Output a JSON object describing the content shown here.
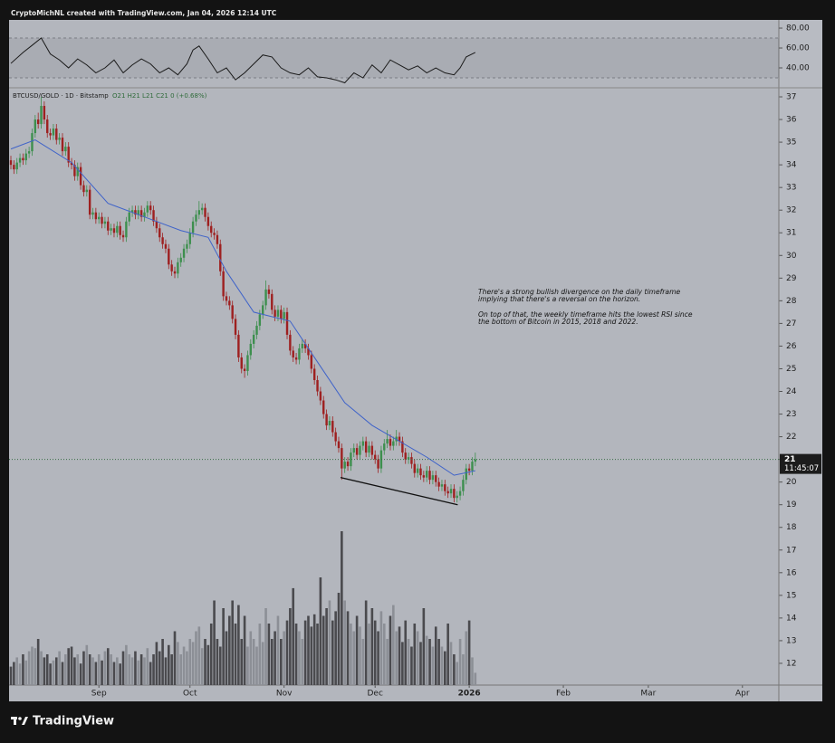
{
  "header": "CryptoMichNL created with TradingView.com, Jan 04, 2026 12:14 UTC",
  "brand": "TradingView",
  "chart_data": [
    {
      "type": "candlestick",
      "symbol": "BTCUSD/GOLD · 1D · Bitstamp",
      "ohlc_legend": "O21 H21 L21 C21 0 (+0.68%)",
      "annotation": [
        [
          "There's a strong bullish divergence on the daily timeframe",
          "implying that there's a reversal on the horizon."
        ],
        [
          "On top of that, the weekly timeframe hits the lowest RSI since",
          "the bottom of Bitcoin in 2015, 2018 and 2022."
        ]
      ],
      "up_color": "#3d8f4e",
      "down_color": "#9e2020",
      "xlim": [
        -0.6,
        253
      ],
      "xticks": [
        {
          "value": 29,
          "label": "Sep"
        },
        {
          "value": 59,
          "label": "Oct"
        },
        {
          "value": 90,
          "label": "Nov"
        },
        {
          "value": 120,
          "label": "Dec"
        },
        {
          "value": 151,
          "label": "2026"
        },
        {
          "value": 182,
          "label": "Feb"
        },
        {
          "value": 210,
          "label": "Mar"
        },
        {
          "value": 241,
          "label": "Apr"
        }
      ],
      "ylim": [
        11.04,
        37.4
      ],
      "yticks": [
        12,
        13,
        14,
        15,
        16,
        17,
        18,
        19,
        20,
        21,
        22,
        23,
        24,
        25,
        26,
        27,
        28,
        29,
        30,
        31,
        32,
        33,
        34,
        35,
        36,
        37
      ],
      "last_price": 21,
      "countdown": "11:45:07",
      "ohlc": [
        [
          34.2,
          34.4,
          33.8,
          34.0
        ],
        [
          34.0,
          34.2,
          33.6,
          33.8
        ],
        [
          33.8,
          34.3,
          33.6,
          34.1
        ],
        [
          34.1,
          34.5,
          33.9,
          34.3
        ],
        [
          34.3,
          34.5,
          34.0,
          34.2
        ],
        [
          34.2,
          34.7,
          34.0,
          34.5
        ],
        [
          34.5,
          34.8,
          34.3,
          34.6
        ],
        [
          34.6,
          35.6,
          34.4,
          35.4
        ],
        [
          35.4,
          36.2,
          35.2,
          36.0
        ],
        [
          36.0,
          36.3,
          35.6,
          35.8
        ],
        [
          35.8,
          37.0,
          35.6,
          36.6
        ],
        [
          36.6,
          36.8,
          35.8,
          36.0
        ],
        [
          36.0,
          36.2,
          35.2,
          35.4
        ],
        [
          35.4,
          35.6,
          35.1,
          35.3
        ],
        [
          35.3,
          35.8,
          35.1,
          35.6
        ],
        [
          35.6,
          35.8,
          34.9,
          35.1
        ],
        [
          35.1,
          35.4,
          34.9,
          35.2
        ],
        [
          35.2,
          35.4,
          34.4,
          34.6
        ],
        [
          34.6,
          35.0,
          34.4,
          34.8
        ],
        [
          34.8,
          35.0,
          33.9,
          34.1
        ],
        [
          34.1,
          34.3,
          33.8,
          34.0
        ],
        [
          34.0,
          34.2,
          33.3,
          33.5
        ],
        [
          33.5,
          34.1,
          33.3,
          33.9
        ],
        [
          33.9,
          34.1,
          32.9,
          33.1
        ],
        [
          33.1,
          33.3,
          32.6,
          32.8
        ],
        [
          32.8,
          33.1,
          32.6,
          32.9
        ],
        [
          32.9,
          33.1,
          31.6,
          31.8
        ],
        [
          31.8,
          32.1,
          31.6,
          31.9
        ],
        [
          31.9,
          32.1,
          31.4,
          31.6
        ],
        [
          31.6,
          31.9,
          31.4,
          31.7
        ],
        [
          31.7,
          31.9,
          31.2,
          31.4
        ],
        [
          31.4,
          31.7,
          31.2,
          31.5
        ],
        [
          31.5,
          31.7,
          30.9,
          31.1
        ],
        [
          31.1,
          31.4,
          30.9,
          31.2
        ],
        [
          31.2,
          31.4,
          30.8,
          31.0
        ],
        [
          31.0,
          31.5,
          30.8,
          31.3
        ],
        [
          31.3,
          31.5,
          30.7,
          30.9
        ],
        [
          30.9,
          31.1,
          30.6,
          30.8
        ],
        [
          30.8,
          31.7,
          30.6,
          31.5
        ],
        [
          31.5,
          32.1,
          31.3,
          31.9
        ],
        [
          31.9,
          32.2,
          31.7,
          32.0
        ],
        [
          32.0,
          32.2,
          31.6,
          31.8
        ],
        [
          31.8,
          32.2,
          31.6,
          32.0
        ],
        [
          32.0,
          32.2,
          31.5,
          31.7
        ],
        [
          31.7,
          32.1,
          31.5,
          31.9
        ],
        [
          31.9,
          32.4,
          31.7,
          32.2
        ],
        [
          32.2,
          32.4,
          31.8,
          32.0
        ],
        [
          32.0,
          32.2,
          31.3,
          31.5
        ],
        [
          31.5,
          31.7,
          31.0,
          31.2
        ],
        [
          31.2,
          31.4,
          30.6,
          30.8
        ],
        [
          30.8,
          31.0,
          30.3,
          30.5
        ],
        [
          30.5,
          30.7,
          30.1,
          30.3
        ],
        [
          30.3,
          30.5,
          29.4,
          29.6
        ],
        [
          29.6,
          29.8,
          29.1,
          29.3
        ],
        [
          29.3,
          29.5,
          29.0,
          29.2
        ],
        [
          29.2,
          29.9,
          29.0,
          29.7
        ],
        [
          29.7,
          30.1,
          29.5,
          29.9
        ],
        [
          29.9,
          30.5,
          29.7,
          30.3
        ],
        [
          30.3,
          30.7,
          30.1,
          30.5
        ],
        [
          30.5,
          31.2,
          30.3,
          31.0
        ],
        [
          31.0,
          31.7,
          30.8,
          31.5
        ],
        [
          31.5,
          32.0,
          31.3,
          31.8
        ],
        [
          31.8,
          32.4,
          31.6,
          32.0
        ],
        [
          32.0,
          32.3,
          31.8,
          32.1
        ],
        [
          32.1,
          32.3,
          31.5,
          31.7
        ],
        [
          31.7,
          31.9,
          31.1,
          31.3
        ],
        [
          31.3,
          31.5,
          30.8,
          31.0
        ],
        [
          31.0,
          31.2,
          30.7,
          30.9
        ],
        [
          30.9,
          31.1,
          30.3,
          30.5
        ],
        [
          30.5,
          30.7,
          29.1,
          29.3
        ],
        [
          29.3,
          29.5,
          28.0,
          28.2
        ],
        [
          28.2,
          28.4,
          27.8,
          28.0
        ],
        [
          28.0,
          28.2,
          27.6,
          27.8
        ],
        [
          27.8,
          28.0,
          27.0,
          27.2
        ],
        [
          27.2,
          27.4,
          26.3,
          26.5
        ],
        [
          26.5,
          26.7,
          25.3,
          25.5
        ],
        [
          25.5,
          25.7,
          24.8,
          25.0
        ],
        [
          25.0,
          25.2,
          24.6,
          24.9
        ],
        [
          24.9,
          25.8,
          24.7,
          25.6
        ],
        [
          25.6,
          26.3,
          25.4,
          26.1
        ],
        [
          26.1,
          26.7,
          25.9,
          26.5
        ],
        [
          26.5,
          27.1,
          26.3,
          26.9
        ],
        [
          26.9,
          27.6,
          26.7,
          27.4
        ],
        [
          27.4,
          28.0,
          27.2,
          27.8
        ],
        [
          27.8,
          28.9,
          27.6,
          28.5
        ],
        [
          28.5,
          28.7,
          28.1,
          28.3
        ],
        [
          28.3,
          28.5,
          27.4,
          27.6
        ],
        [
          27.6,
          27.8,
          27.1,
          27.3
        ],
        [
          27.3,
          27.8,
          27.1,
          27.6
        ],
        [
          27.6,
          27.8,
          27.0,
          27.2
        ],
        [
          27.2,
          27.7,
          27.0,
          27.5
        ],
        [
          27.5,
          27.7,
          26.3,
          26.5
        ],
        [
          26.5,
          26.7,
          25.6,
          25.8
        ],
        [
          25.8,
          26.0,
          25.3,
          25.5
        ],
        [
          25.5,
          25.7,
          25.2,
          25.4
        ],
        [
          25.4,
          26.1,
          25.2,
          25.9
        ],
        [
          25.9,
          26.3,
          25.7,
          26.1
        ],
        [
          26.1,
          26.3,
          25.7,
          25.9
        ],
        [
          25.9,
          26.1,
          25.4,
          25.6
        ],
        [
          25.6,
          25.8,
          24.8,
          25.0
        ],
        [
          25.0,
          25.2,
          24.3,
          24.5
        ],
        [
          24.5,
          24.7,
          23.8,
          24.0
        ],
        [
          24.0,
          24.2,
          23.4,
          23.6
        ],
        [
          23.6,
          23.8,
          22.8,
          23.0
        ],
        [
          23.0,
          23.2,
          22.3,
          22.5
        ],
        [
          22.5,
          22.9,
          22.3,
          22.7
        ],
        [
          22.7,
          22.9,
          22.0,
          22.2
        ],
        [
          22.2,
          22.4,
          21.6,
          21.8
        ],
        [
          21.8,
          22.0,
          21.3,
          21.5
        ],
        [
          21.5,
          21.7,
          20.1,
          20.6
        ],
        [
          20.6,
          21.1,
          20.4,
          20.9
        ],
        [
          20.9,
          21.1,
          20.5,
          20.7
        ],
        [
          20.7,
          21.5,
          20.5,
          21.3
        ],
        [
          21.3,
          21.7,
          21.1,
          21.5
        ],
        [
          21.5,
          21.7,
          21.0,
          21.2
        ],
        [
          21.2,
          21.8,
          21.0,
          21.6
        ],
        [
          21.6,
          22.0,
          21.4,
          21.8
        ],
        [
          21.8,
          22.0,
          21.1,
          21.3
        ],
        [
          21.3,
          21.8,
          21.1,
          21.6
        ],
        [
          21.6,
          21.8,
          21.0,
          21.2
        ],
        [
          21.2,
          21.4,
          20.8,
          21.0
        ],
        [
          21.0,
          21.2,
          20.4,
          20.6
        ],
        [
          20.6,
          21.6,
          20.4,
          21.4
        ],
        [
          21.4,
          21.9,
          21.2,
          21.7
        ],
        [
          21.7,
          22.3,
          21.5,
          21.9
        ],
        [
          21.9,
          22.1,
          21.4,
          21.6
        ],
        [
          21.6,
          22.0,
          21.4,
          21.8
        ],
        [
          21.8,
          22.3,
          21.6,
          22.0
        ],
        [
          22.0,
          22.2,
          21.6,
          21.8
        ],
        [
          21.8,
          22.0,
          21.1,
          21.3
        ],
        [
          21.3,
          21.5,
          20.8,
          21.0
        ],
        [
          21.0,
          21.3,
          20.8,
          21.1
        ],
        [
          21.1,
          21.3,
          20.6,
          20.8
        ],
        [
          20.8,
          21.0,
          20.2,
          20.4
        ],
        [
          20.4,
          20.8,
          20.2,
          20.6
        ],
        [
          20.6,
          20.8,
          20.1,
          20.3
        ],
        [
          20.3,
          20.5,
          20.0,
          20.2
        ],
        [
          20.2,
          20.7,
          20.0,
          20.5
        ],
        [
          20.5,
          20.7,
          19.9,
          20.1
        ],
        [
          20.1,
          20.5,
          19.9,
          20.3
        ],
        [
          20.3,
          20.5,
          19.8,
          20.0
        ],
        [
          20.0,
          20.2,
          19.6,
          19.8
        ],
        [
          19.8,
          20.1,
          19.6,
          19.9
        ],
        [
          19.9,
          20.1,
          19.4,
          19.6
        ],
        [
          19.6,
          19.8,
          19.3,
          19.5
        ],
        [
          19.5,
          19.9,
          19.3,
          19.7
        ],
        [
          19.7,
          19.9,
          19.1,
          19.3
        ],
        [
          19.3,
          19.6,
          19.1,
          19.4
        ],
        [
          19.4,
          19.8,
          19.2,
          19.6
        ],
        [
          19.6,
          20.3,
          19.4,
          20.1
        ],
        [
          20.1,
          20.8,
          19.9,
          20.6
        ],
        [
          20.6,
          20.8,
          20.3,
          20.5
        ],
        [
          20.5,
          21.1,
          20.3,
          20.9
        ],
        [
          20.9,
          21.3,
          20.7,
          21.0
        ]
      ],
      "volume_lim": [
        0,
        100
      ],
      "volume": [
        12,
        15,
        18,
        14,
        20,
        16,
        22,
        25,
        24,
        30,
        22,
        18,
        20,
        14,
        16,
        18,
        22,
        15,
        20,
        24,
        25,
        18,
        20,
        14,
        22,
        26,
        20,
        18,
        15,
        20,
        16,
        22,
        24,
        20,
        15,
        18,
        14,
        22,
        26,
        20,
        18,
        22,
        16,
        20,
        18,
        24,
        15,
        20,
        28,
        22,
        30,
        18,
        26,
        20,
        35,
        28,
        20,
        25,
        22,
        30,
        28,
        35,
        38,
        24,
        30,
        26,
        40,
        55,
        30,
        25,
        50,
        35,
        45,
        55,
        40,
        52,
        30,
        45,
        25,
        35,
        30,
        25,
        40,
        28,
        50,
        40,
        30,
        35,
        45,
        30,
        35,
        42,
        50,
        63,
        40,
        35,
        30,
        42,
        45,
        38,
        46,
        40,
        70,
        45,
        50,
        55,
        42,
        48,
        60,
        100,
        55,
        48,
        40,
        35,
        45,
        38,
        30,
        55,
        40,
        50,
        42,
        35,
        48,
        40,
        30,
        45,
        52,
        35,
        38,
        28,
        42,
        30,
        25,
        40,
        35,
        28,
        50,
        32,
        30,
        25,
        38,
        30,
        25,
        22,
        40,
        28,
        20,
        15,
        30,
        20,
        35,
        42,
        18,
        8
      ],
      "ma": {
        "color": "#3f63c9",
        "x": [
          0,
          8,
          20,
          32,
          44,
          56,
          65,
          71,
          80,
          92,
          101,
          110,
          119,
          128,
          137,
          146,
          153
        ],
        "values": [
          34.7,
          35.1,
          34.1,
          32.3,
          31.7,
          31.1,
          30.8,
          29.3,
          27.5,
          27.1,
          25.3,
          23.5,
          22.5,
          21.8,
          21.1,
          20.3,
          20.5
        ]
      },
      "trendline": {
        "x": [
          108.6,
          147.2
        ],
        "values": [
          20.2,
          19.0
        ]
      }
    },
    {
      "type": "line",
      "color": "#1a1a1a",
      "ylim": [
        20,
        86.4
      ],
      "yticks": [
        {
          "value": 80,
          "label": "80.00"
        },
        {
          "value": 60,
          "label": "60.00"
        },
        {
          "value": 40,
          "label": "40.00"
        }
      ],
      "bands": [
        70,
        30
      ],
      "x": [
        0,
        4,
        7,
        10,
        13,
        16,
        19,
        22,
        25,
        28,
        31,
        34,
        37,
        40,
        43,
        46,
        49,
        52,
        55,
        58,
        60,
        62,
        65,
        68,
        71,
        74,
        77,
        80,
        83,
        86,
        89,
        92,
        95,
        98,
        101,
        104,
        107,
        110,
        113,
        116,
        119,
        122,
        125,
        128,
        131,
        134,
        137,
        140,
        143,
        146,
        148,
        150,
        153
      ],
      "values": [
        44.5,
        55.5,
        62.7,
        70,
        54,
        48,
        40,
        49,
        43,
        35,
        40,
        48,
        35,
        43,
        49,
        44,
        35,
        40,
        33,
        44,
        58,
        62,
        49,
        35,
        40,
        28,
        35,
        44,
        53,
        51,
        40,
        35,
        33,
        40,
        31,
        30,
        28,
        25,
        35,
        30,
        43,
        35,
        48,
        43,
        38,
        42,
        35,
        40,
        35,
        33,
        40,
        51,
        55.5
      ]
    }
  ]
}
